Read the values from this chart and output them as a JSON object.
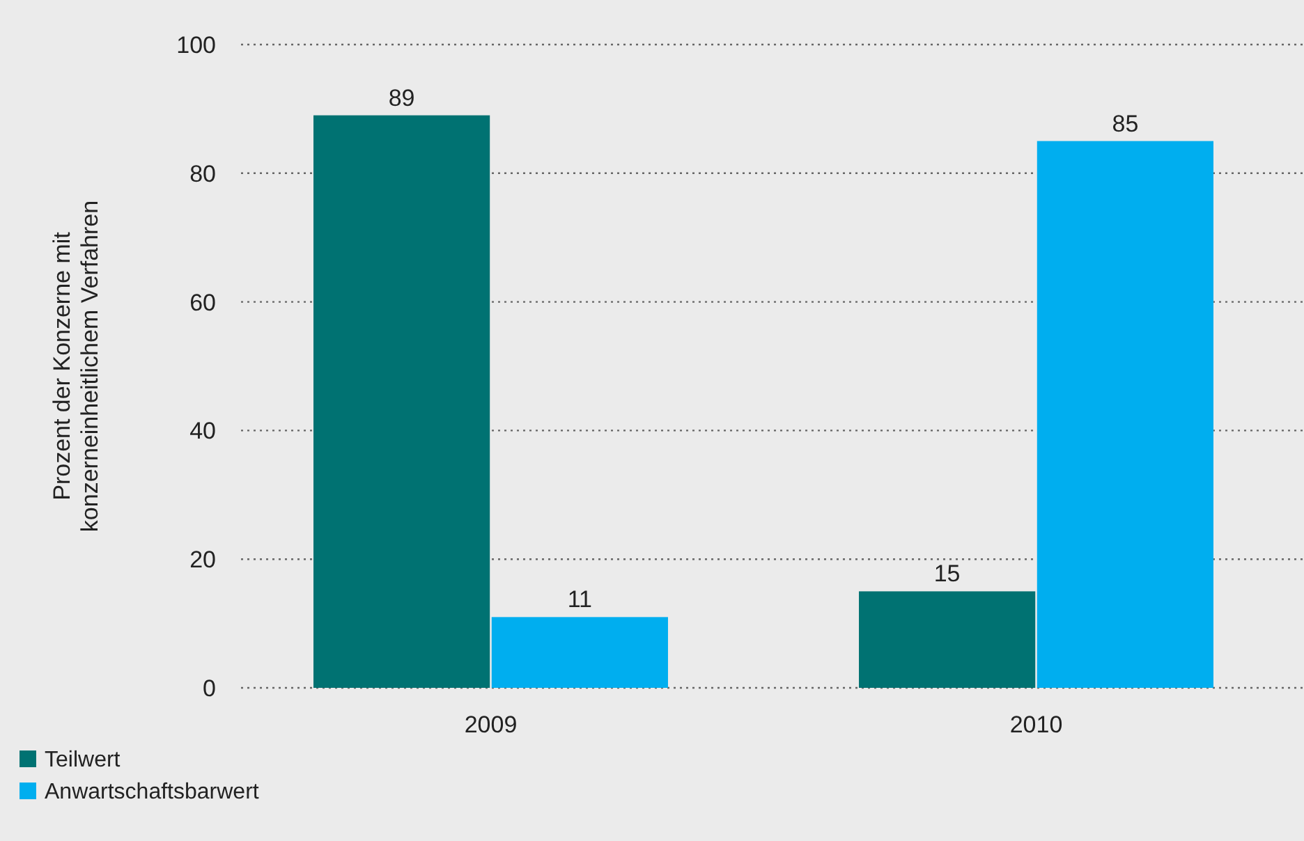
{
  "chart_data": {
    "type": "bar",
    "ylabel": "Prozent der Konzerne mit\nkonzerneinheitlichem Verfahren",
    "categories": [
      "2009",
      "2010"
    ],
    "series": [
      {
        "name": "Teilwert",
        "color": "#007272",
        "values": [
          89,
          15
        ]
      },
      {
        "name": "Anwartschaftsbarwert",
        "color": "#00aeef",
        "values": [
          11,
          85
        ]
      }
    ],
    "ylim": [
      0,
      100
    ],
    "yticks": [
      0,
      20,
      40,
      60,
      80,
      100
    ],
    "grid": "y",
    "data_labels": true,
    "legend": "bottom left"
  }
}
